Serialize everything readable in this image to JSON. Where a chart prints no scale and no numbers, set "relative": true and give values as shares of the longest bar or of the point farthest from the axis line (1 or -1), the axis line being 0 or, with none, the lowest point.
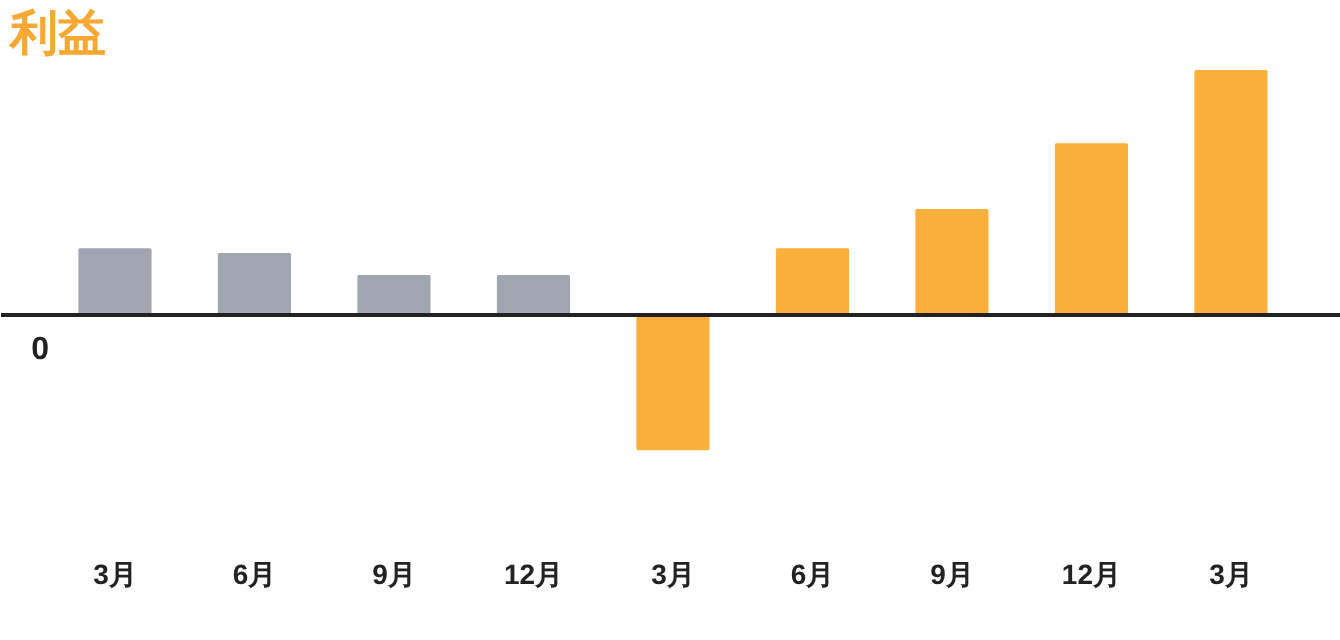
{
  "chart_data": {
    "type": "bar",
    "title": "利益",
    "categories": [
      "3月",
      "6月",
      "9月",
      "12月",
      "3月",
      "6月",
      "9月",
      "12月",
      "3月"
    ],
    "values": [
      0.27,
      0.25,
      0.16,
      0.16,
      -0.55,
      0.27,
      0.43,
      0.7,
      1
    ],
    "colors": [
      "#a0a6b0",
      "#a0a6b0",
      "#a0a6b0",
      "#a0a6b0",
      "#fbb03b",
      "#fbb03b",
      "#fbb03b",
      "#fbb03b",
      "#fbb03b"
    ],
    "relative": true,
    "ref_lines": [
      {
        "axis": "y",
        "value": 0,
        "label": "0"
      }
    ],
    "grid": false
  }
}
